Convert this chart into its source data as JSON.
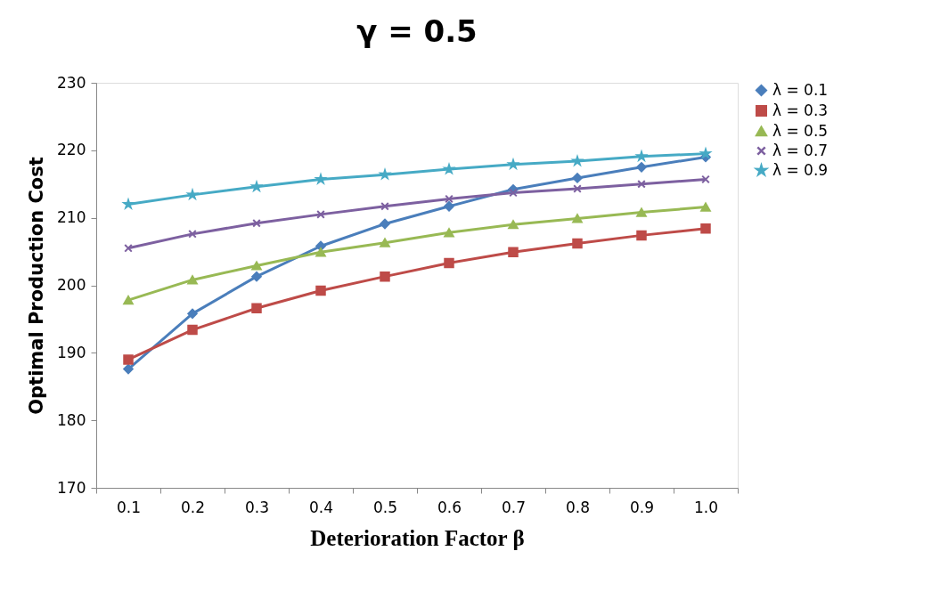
{
  "chart_data": {
    "type": "line",
    "title": "γ = 0.5",
    "xlabel": "Deterioration Factor β",
    "ylabel": "Optimal Production Cost",
    "categories": [
      "0.1",
      "0.2",
      "0.3",
      "0.4",
      "0.5",
      "0.6",
      "0.7",
      "0.8",
      "0.9",
      "1.0"
    ],
    "series": [
      {
        "name": "λ = 0.1",
        "color": "#4a7ebb",
        "marker": "diamond",
        "values": [
          187.6,
          195.8,
          201.3,
          205.8,
          209.1,
          211.7,
          214.2,
          215.9,
          217.5,
          219.0
        ]
      },
      {
        "name": "λ = 0.3",
        "color": "#be4b48",
        "marker": "square",
        "values": [
          189.0,
          193.4,
          196.6,
          199.2,
          201.3,
          203.3,
          204.9,
          206.2,
          207.4,
          208.4
        ]
      },
      {
        "name": "λ = 0.5",
        "color": "#98b954",
        "marker": "triangle",
        "values": [
          197.8,
          200.8,
          202.9,
          204.9,
          206.3,
          207.8,
          209.0,
          209.9,
          210.8,
          211.6
        ]
      },
      {
        "name": "λ = 0.7",
        "color": "#7d60a0",
        "marker": "cross",
        "values": [
          205.5,
          207.6,
          209.2,
          210.5,
          211.7,
          212.8,
          213.7,
          214.3,
          215.0,
          215.7
        ]
      },
      {
        "name": "λ = 0.9",
        "color": "#46aac5",
        "marker": "star",
        "values": [
          212.0,
          213.4,
          214.6,
          215.7,
          216.4,
          217.2,
          217.9,
          218.4,
          219.1,
          219.5
        ]
      }
    ],
    "ylim": [
      170,
      230
    ],
    "yticks": [
      170,
      180,
      190,
      200,
      210,
      220,
      230
    ],
    "grid": false,
    "legend": "right"
  }
}
